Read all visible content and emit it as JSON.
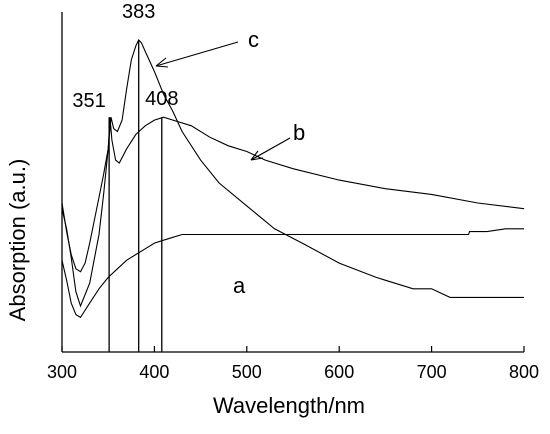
{
  "chart_data": {
    "type": "line",
    "title": "",
    "xlabel": "Wavelength/nm",
    "ylabel": "Absorption (a.u.)",
    "xlim": [
      300,
      800
    ],
    "y_units": "arbitrary (a.u.), no y tick labels shown",
    "ylim": [
      0,
      1
    ],
    "x_ticks": [
      300,
      400,
      500,
      600,
      700,
      800
    ],
    "grid": false,
    "legend": "none (curves labelled a, b, c)",
    "series": [
      {
        "name": "a",
        "points": [
          [
            300,
            0.23
          ],
          [
            305,
            0.16
          ],
          [
            310,
            0.08
          ],
          [
            315,
            0.04
          ],
          [
            320,
            0.03
          ],
          [
            330,
            0.08
          ],
          [
            340,
            0.13
          ],
          [
            350,
            0.17
          ],
          [
            360,
            0.2
          ],
          [
            370,
            0.23
          ],
          [
            380,
            0.25
          ],
          [
            390,
            0.27
          ],
          [
            400,
            0.29
          ],
          [
            410,
            0.3
          ],
          [
            420,
            0.31
          ],
          [
            430,
            0.32
          ],
          [
            450,
            0.32
          ],
          [
            500,
            0.32
          ],
          [
            600,
            0.32
          ],
          [
            700,
            0.32
          ],
          [
            740,
            0.32
          ],
          [
            741,
            0.33
          ],
          [
            760,
            0.33
          ],
          [
            780,
            0.34
          ],
          [
            800,
            0.34
          ]
        ]
      },
      {
        "name": "b",
        "points": [
          [
            300,
            0.43
          ],
          [
            305,
            0.33
          ],
          [
            310,
            0.25
          ],
          [
            315,
            0.2
          ],
          [
            320,
            0.19
          ],
          [
            325,
            0.22
          ],
          [
            330,
            0.29
          ],
          [
            340,
            0.45
          ],
          [
            345,
            0.53
          ],
          [
            350,
            0.62
          ],
          [
            352,
            0.73
          ],
          [
            354,
            0.65
          ],
          [
            358,
            0.58
          ],
          [
            362,
            0.57
          ],
          [
            370,
            0.62
          ],
          [
            380,
            0.67
          ],
          [
            390,
            0.7
          ],
          [
            400,
            0.72
          ],
          [
            410,
            0.73
          ],
          [
            420,
            0.72
          ],
          [
            440,
            0.7
          ],
          [
            460,
            0.66
          ],
          [
            480,
            0.63
          ],
          [
            500,
            0.61
          ],
          [
            520,
            0.58
          ],
          [
            550,
            0.55
          ],
          [
            600,
            0.51
          ],
          [
            650,
            0.48
          ],
          [
            700,
            0.46
          ],
          [
            750,
            0.43
          ],
          [
            800,
            0.41
          ]
        ]
      },
      {
        "name": "c",
        "points": [
          [
            300,
            0.41
          ],
          [
            305,
            0.34
          ],
          [
            310,
            0.24
          ],
          [
            315,
            0.12
          ],
          [
            320,
            0.07
          ],
          [
            330,
            0.15
          ],
          [
            340,
            0.32
          ],
          [
            345,
            0.46
          ],
          [
            350,
            0.62
          ],
          [
            353,
            0.73
          ],
          [
            356,
            0.69
          ],
          [
            360,
            0.68
          ],
          [
            365,
            0.72
          ],
          [
            370,
            0.83
          ],
          [
            375,
            0.93
          ],
          [
            380,
            0.98
          ],
          [
            383,
            1.0
          ],
          [
            386,
            0.99
          ],
          [
            390,
            0.96
          ],
          [
            400,
            0.89
          ],
          [
            410,
            0.81
          ],
          [
            420,
            0.75
          ],
          [
            430,
            0.68
          ],
          [
            450,
            0.58
          ],
          [
            470,
            0.5
          ],
          [
            500,
            0.42
          ],
          [
            530,
            0.34
          ],
          [
            560,
            0.29
          ],
          [
            600,
            0.22
          ],
          [
            640,
            0.17
          ],
          [
            680,
            0.13
          ],
          [
            700,
            0.13
          ],
          [
            720,
            0.1
          ],
          [
            750,
            0.1
          ],
          [
            800,
            0.1
          ]
        ]
      }
    ],
    "peak_markers": [
      {
        "x": 351,
        "label": "351",
        "y_top": 0.73
      },
      {
        "x": 383,
        "label": "383",
        "y_top": 1.0
      },
      {
        "x": 408,
        "label": "408",
        "y_top": 0.73
      }
    ],
    "annotations": {
      "label_a": "a",
      "label_b": "b",
      "label_c": "c"
    }
  }
}
